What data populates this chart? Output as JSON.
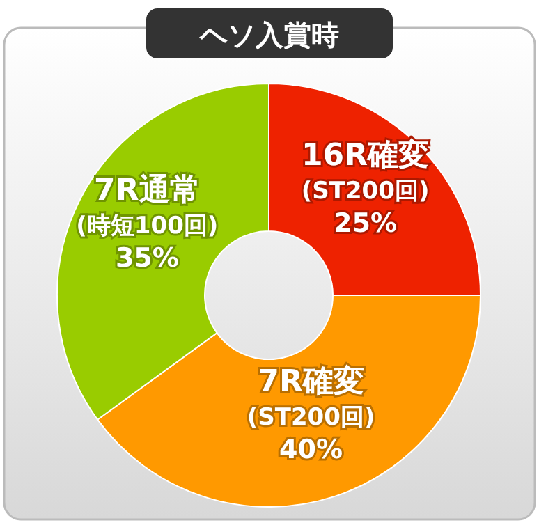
{
  "chart_data": {
    "type": "donut",
    "title": "ヘソ入賞時",
    "categories": [
      "16R確変 (ST200回)",
      "7R確変 (ST200回)",
      "7R通常 (時短100回)"
    ],
    "values": [
      25,
      40,
      35
    ],
    "colors": [
      "#ee2200",
      "#ff9900",
      "#99cc00"
    ],
    "value_labels": [
      "25%",
      "40%",
      "35%"
    ]
  }
}
